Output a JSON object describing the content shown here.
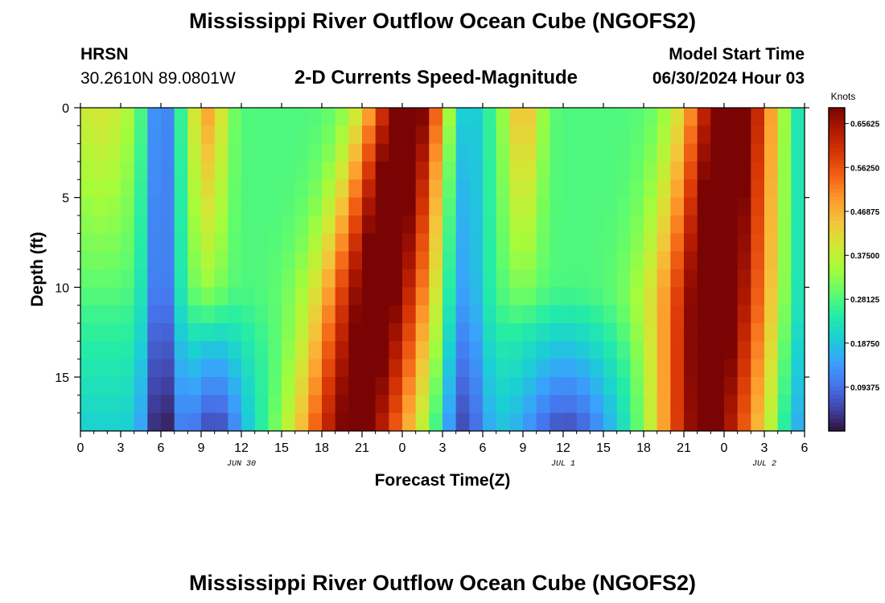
{
  "header": {
    "title": "Mississippi River Outflow Ocean Cube (NGOFS2)",
    "station": "HRSN",
    "coordinates": "30.2610N  89.0801W",
    "subtitle": "2-D Currents Speed-Magnitude",
    "model_start_label": "Model Start Time",
    "model_start_value": "06/30/2024 Hour 03"
  },
  "footer": {
    "title": "Mississippi River Outflow Ocean Cube (NGOFS2)"
  },
  "chart_data": {
    "type": "heatmap",
    "xlabel": "Forecast Time(Z)",
    "ylabel": "Depth (ft)",
    "x_ticks": [
      "0",
      "3",
      "6",
      "9",
      "12",
      "15",
      "18",
      "21",
      "0",
      "3",
      "6",
      "9",
      "12",
      "15",
      "18",
      "21",
      "0",
      "3",
      "6"
    ],
    "x_hours": [
      0,
      54
    ],
    "y_ticks": [
      "0",
      "5",
      "10",
      "15"
    ],
    "y_range": [
      0,
      18
    ],
    "date_labels": [
      {
        "text": "JUN 30",
        "hour": 12
      },
      {
        "text": "JUL 1",
        "hour": 36
      },
      {
        "text": "JUL 2",
        "hour": 51
      }
    ],
    "colorbar": {
      "unit": "Knots",
      "min": 0.0,
      "max": 0.69,
      "labels": [
        "0.65625",
        "0.56250",
        "0.46875",
        "0.37500",
        "0.28125",
        "0.18750",
        "0.09375"
      ],
      "label_values": [
        0.65625,
        0.5625,
        0.46875,
        0.375,
        0.28125,
        0.1875,
        0.09375
      ],
      "colors": [
        "#30123b",
        "#4145ab",
        "#4675ed",
        "#39a2fc",
        "#1bcfd4",
        "#24eca6",
        "#61fc6c",
        "#a4fc3b",
        "#d1e834",
        "#f3c63a",
        "#fe9b2d",
        "#f36315",
        "#d93806",
        "#b11901",
        "#7a0403"
      ]
    },
    "speed_field_description_only_in_script": true
  }
}
